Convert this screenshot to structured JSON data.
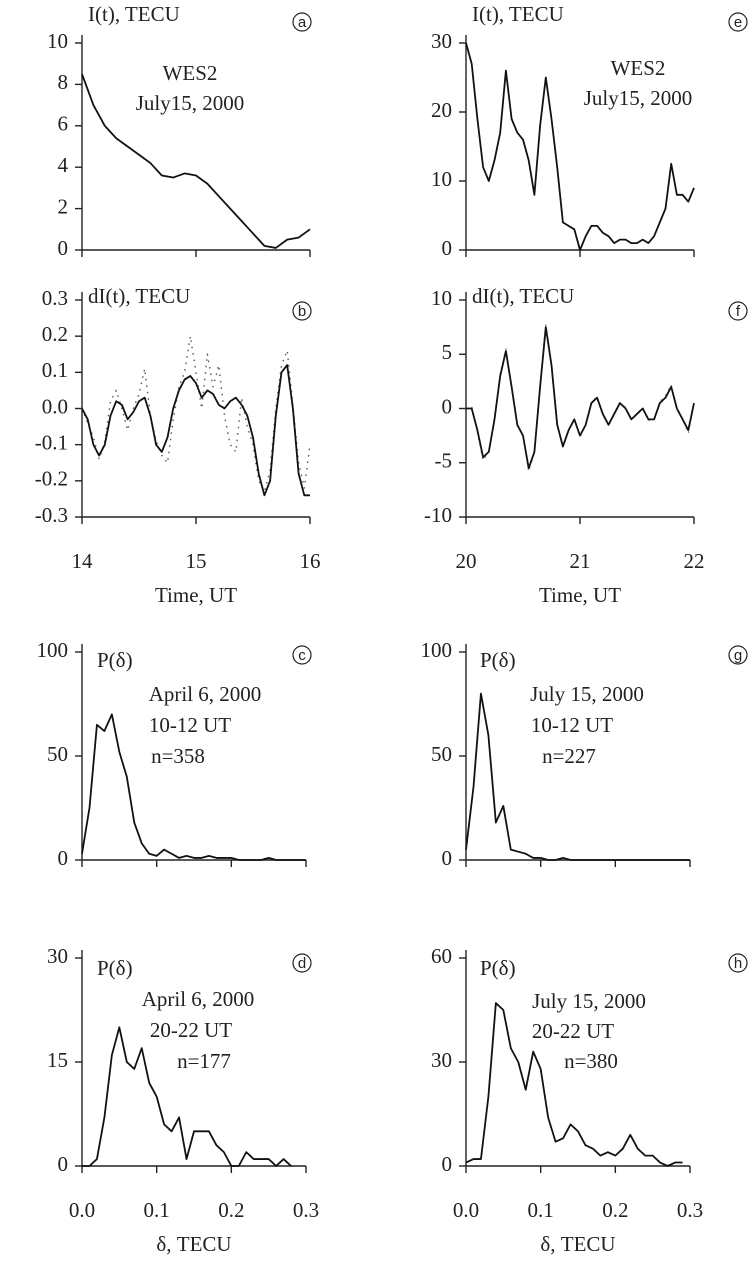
{
  "chart_data": [
    {
      "type": "line",
      "panel": "a",
      "y_label": "I(t), TECU",
      "annotations": [
        "WES2",
        "July15, 2000"
      ],
      "xlim": [
        14,
        16
      ],
      "xticks": [
        14,
        15,
        16
      ],
      "xtick_labels": false,
      "ylim": [
        0,
        10
      ],
      "yticks": [
        0,
        2,
        4,
        6,
        8,
        10
      ],
      "x": [
        14.0,
        14.1,
        14.2,
        14.3,
        14.4,
        14.5,
        14.6,
        14.7,
        14.8,
        14.9,
        15.0,
        15.1,
        15.2,
        15.3,
        15.4,
        15.5,
        15.6,
        15.7,
        15.8,
        15.9,
        16.0
      ],
      "series": [
        {
          "color": "#111111",
          "line_style": "solid",
          "values": [
            8.5,
            7.0,
            6.0,
            5.4,
            5.0,
            4.6,
            4.2,
            3.6,
            3.5,
            3.7,
            3.6,
            3.2,
            2.6,
            2.0,
            1.4,
            0.8,
            0.2,
            0.1,
            0.5,
            0.6,
            1.0
          ]
        }
      ]
    },
    {
      "type": "line",
      "panel": "b",
      "y_label": "dI(t), TECU",
      "x_label": "Time, UT",
      "xlim": [
        14,
        16
      ],
      "xticks": [
        14,
        15,
        16
      ],
      "xtick_labels": true,
      "ylim": [
        -0.3,
        0.3
      ],
      "yticks": [
        -0.3,
        -0.2,
        -0.1,
        {
          "value": 0,
          "label": "0.0"
        },
        0.1,
        0.2,
        0.3
      ],
      "x": [
        14.0,
        14.05,
        14.1,
        14.15,
        14.2,
        14.25,
        14.3,
        14.35,
        14.4,
        14.45,
        14.5,
        14.55,
        14.6,
        14.65,
        14.7,
        14.75,
        14.8,
        14.85,
        14.9,
        14.95,
        15.0,
        15.05,
        15.1,
        15.15,
        15.2,
        15.25,
        15.3,
        15.35,
        15.4,
        15.45,
        15.5,
        15.55,
        15.6,
        15.65,
        15.7,
        15.75,
        15.8,
        15.85,
        15.9,
        15.95,
        16.0
      ],
      "series": [
        {
          "color": "#555555",
          "line_style": "dotted",
          "values": [
            0.0,
            -0.04,
            -0.08,
            -0.14,
            -0.09,
            0.02,
            0.05,
            0.0,
            -0.06,
            0.0,
            0.04,
            0.11,
            -0.02,
            -0.09,
            -0.13,
            -0.15,
            -0.03,
            0.06,
            0.1,
            0.2,
            0.1,
            0.0,
            0.15,
            0.06,
            0.12,
            -0.02,
            -0.1,
            -0.12,
            0.03,
            -0.05,
            -0.1,
            -0.2,
            -0.23,
            -0.17,
            0.0,
            0.12,
            0.16,
            0.01,
            -0.15,
            -0.22,
            -0.1
          ]
        },
        {
          "color": "#111111",
          "line_style": "solid",
          "values": [
            0.0,
            -0.03,
            -0.1,
            -0.13,
            -0.1,
            -0.02,
            0.02,
            0.01,
            -0.03,
            -0.01,
            0.02,
            0.03,
            -0.02,
            -0.1,
            -0.12,
            -0.08,
            0.0,
            0.05,
            0.08,
            0.09,
            0.07,
            0.03,
            0.05,
            0.04,
            0.01,
            0.0,
            0.02,
            0.03,
            0.01,
            -0.02,
            -0.08,
            -0.18,
            -0.24,
            -0.2,
            -0.02,
            0.1,
            0.12,
            0.0,
            -0.18,
            -0.24,
            -0.24
          ]
        }
      ]
    },
    {
      "type": "line",
      "panel": "c",
      "y_label": "P(δ)",
      "annotations": [
        "April 6, 2000",
        "10-12 UT",
        "n=358"
      ],
      "xlim": [
        0,
        0.3
      ],
      "xticks": [
        {
          "value": 0,
          "label": "0.0"
        },
        0.1,
        0.2,
        0.3
      ],
      "xtick_labels": false,
      "ylim": [
        0,
        100
      ],
      "yticks": [
        0,
        50,
        100
      ],
      "x": [
        0,
        0.01,
        0.02,
        0.03,
        0.04,
        0.05,
        0.06,
        0.07,
        0.08,
        0.09,
        0.1,
        0.11,
        0.12,
        0.13,
        0.14,
        0.15,
        0.16,
        0.17,
        0.18,
        0.19,
        0.2,
        0.21,
        0.22,
        0.23,
        0.24,
        0.25,
        0.26,
        0.27,
        0.28,
        0.29,
        0.3
      ],
      "series": [
        {
          "color": "#111111",
          "line_style": "solid",
          "values": [
            3,
            25,
            65,
            62,
            70,
            52,
            40,
            18,
            8,
            3,
            2,
            5,
            3,
            1,
            2,
            1,
            1,
            2,
            1,
            1,
            1,
            0,
            0,
            0,
            0,
            1,
            0,
            0,
            0,
            0,
            0
          ]
        }
      ]
    },
    {
      "type": "line",
      "panel": "d",
      "y_label": "P(δ)",
      "x_label": "δ, TECU",
      "annotations": [
        "April 6, 2000",
        "20-22 UT",
        "n=177"
      ],
      "xlim": [
        0,
        0.3
      ],
      "xticks": [
        {
          "value": 0,
          "label": "0.0"
        },
        0.1,
        0.2,
        0.3
      ],
      "xtick_labels": true,
      "ylim": [
        0,
        30
      ],
      "yticks": [
        0,
        15,
        30
      ],
      "x": [
        0,
        0.01,
        0.02,
        0.03,
        0.04,
        0.05,
        0.06,
        0.07,
        0.08,
        0.09,
        0.1,
        0.11,
        0.12,
        0.13,
        0.14,
        0.15,
        0.16,
        0.17,
        0.18,
        0.19,
        0.2,
        0.21,
        0.22,
        0.23,
        0.24,
        0.25,
        0.26,
        0.27,
        0.28
      ],
      "series": [
        {
          "color": "#111111",
          "line_style": "solid",
          "values": [
            0,
            0,
            1,
            7,
            16,
            20,
            15,
            14,
            17,
            12,
            10,
            6,
            5,
            7,
            1,
            5,
            5,
            5,
            3,
            2,
            0,
            0,
            2,
            1,
            1,
            1,
            0,
            1,
            0
          ]
        }
      ]
    },
    {
      "type": "line",
      "panel": "e",
      "y_label": "I(t), TECU",
      "annotations": [
        "WES2",
        "July15, 2000"
      ],
      "xlim": [
        20,
        22
      ],
      "xticks": [
        20,
        21,
        22
      ],
      "xtick_labels": false,
      "ylim": [
        0,
        30
      ],
      "yticks": [
        0,
        10,
        20,
        30
      ],
      "x": [
        20.0,
        20.05,
        20.1,
        20.15,
        20.2,
        20.25,
        20.3,
        20.35,
        20.4,
        20.45,
        20.5,
        20.55,
        20.6,
        20.65,
        20.7,
        20.75,
        20.8,
        20.85,
        20.9,
        20.95,
        21.0,
        21.05,
        21.1,
        21.15,
        21.2,
        21.25,
        21.3,
        21.35,
        21.4,
        21.45,
        21.5,
        21.55,
        21.6,
        21.65,
        21.7,
        21.75,
        21.8,
        21.85,
        21.9,
        21.95,
        22.0
      ],
      "series": [
        {
          "color": "#111111",
          "line_style": "solid",
          "values": [
            30,
            27,
            19,
            12,
            10,
            13,
            17,
            26,
            19,
            17,
            16,
            13,
            8,
            18,
            25,
            19,
            12,
            4,
            3.5,
            3,
            0,
            2,
            3.5,
            3.5,
            2.5,
            2,
            1,
            1.5,
            1.5,
            1,
            1,
            1.5,
            1,
            2,
            4,
            6,
            12.5,
            8,
            8,
            7,
            9
          ]
        }
      ]
    },
    {
      "type": "line",
      "panel": "f",
      "y_label": "dI(t), TECU",
      "x_label": "Time, UT",
      "xlim": [
        20,
        22
      ],
      "xticks": [
        20,
        21,
        22
      ],
      "xtick_labels": true,
      "ylim": [
        -10,
        10
      ],
      "yticks": [
        -10,
        -5,
        0,
        5,
        10
      ],
      "x": [
        20.0,
        20.05,
        20.1,
        20.15,
        20.2,
        20.25,
        20.3,
        20.35,
        20.4,
        20.45,
        20.5,
        20.55,
        20.6,
        20.65,
        20.7,
        20.75,
        20.8,
        20.85,
        20.9,
        20.95,
        21.0,
        21.05,
        21.1,
        21.15,
        21.2,
        21.25,
        21.3,
        21.35,
        21.4,
        21.45,
        21.5,
        21.55,
        21.6,
        21.65,
        21.7,
        21.75,
        21.8,
        21.85,
        21.9,
        21.95,
        22.0
      ],
      "series": [
        {
          "color": "#888888",
          "line_style": "dotted",
          "values": [
            0,
            0.2,
            -2.2,
            -4.8,
            -4,
            -0.8,
            3.2,
            5.5,
            2,
            -1.6,
            -2.4,
            -5.8,
            -4,
            2.2,
            7.7,
            4,
            -1.4,
            -3.6,
            -2,
            -1,
            -2.6,
            -1.4,
            0.6,
            1.1,
            -0.6,
            -1.5,
            -0.4,
            0.5,
            0.1,
            -1,
            -0.5,
            0.1,
            -1.1,
            -1,
            0.6,
            1.2,
            2.2,
            0,
            -1,
            -2.3,
            0.5
          ]
        },
        {
          "color": "#111111",
          "line_style": "solid",
          "values": [
            0,
            0,
            -2,
            -4.5,
            -4,
            -1,
            3,
            5.3,
            2,
            -1.5,
            -2.5,
            -5.5,
            -4,
            2,
            7.5,
            4,
            -1.5,
            -3.5,
            -2,
            -1,
            -2.5,
            -1.5,
            0.5,
            1,
            -0.5,
            -1.5,
            -0.5,
            0.5,
            0,
            -1,
            -0.5,
            0,
            -1,
            -1,
            0.5,
            1,
            2,
            0,
            -1,
            -2,
            0.5
          ]
        }
      ]
    },
    {
      "type": "line",
      "panel": "g",
      "y_label": "P(δ)",
      "annotations": [
        "July 15, 2000",
        "10-12 UT",
        "n=227"
      ],
      "xlim": [
        0,
        0.3
      ],
      "xticks": [
        {
          "value": 0,
          "label": "0.0"
        },
        0.1,
        0.2,
        0.3
      ],
      "xtick_labels": false,
      "ylim": [
        0,
        100
      ],
      "yticks": [
        0,
        50,
        100
      ],
      "x": [
        0,
        0.01,
        0.02,
        0.03,
        0.04,
        0.05,
        0.06,
        0.07,
        0.08,
        0.09,
        0.1,
        0.11,
        0.12,
        0.13,
        0.14,
        0.15,
        0.16,
        0.17,
        0.18,
        0.19,
        0.2,
        0.21,
        0.22,
        0.23,
        0.24,
        0.25,
        0.26,
        0.27,
        0.28,
        0.29,
        0.3
      ],
      "series": [
        {
          "color": "#111111",
          "line_style": "solid",
          "values": [
            5,
            35,
            80,
            60,
            18,
            26,
            5,
            4,
            3,
            1,
            1,
            0,
            0,
            1,
            0,
            0,
            0,
            0,
            0,
            0,
            0,
            0,
            0,
            0,
            0,
            0,
            0,
            0,
            0,
            0,
            0
          ]
        }
      ]
    },
    {
      "type": "line",
      "panel": "h",
      "y_label": "P(δ)",
      "x_label": "δ, TECU",
      "annotations": [
        "July 15, 2000",
        "20-22 UT",
        "n=380"
      ],
      "xlim": [
        0,
        0.3
      ],
      "xticks": [
        {
          "value": 0,
          "label": "0.0"
        },
        0.1,
        0.2,
        0.3
      ],
      "xtick_labels": true,
      "ylim": [
        0,
        60
      ],
      "yticks": [
        0,
        30,
        60
      ],
      "x": [
        0,
        0.01,
        0.02,
        0.03,
        0.04,
        0.05,
        0.06,
        0.07,
        0.08,
        0.09,
        0.1,
        0.11,
        0.12,
        0.13,
        0.14,
        0.15,
        0.16,
        0.17,
        0.18,
        0.19,
        0.2,
        0.21,
        0.22,
        0.23,
        0.24,
        0.25,
        0.26,
        0.27,
        0.28,
        0.29
      ],
      "series": [
        {
          "color": "#111111",
          "line_style": "solid",
          "values": [
            1,
            2,
            2,
            20,
            47,
            45,
            34,
            30,
            22,
            33,
            28,
            14,
            7,
            8,
            12,
            10,
            6,
            5,
            3,
            4,
            3,
            5,
            9,
            5,
            3,
            3,
            1,
            0,
            1,
            1
          ]
        }
      ]
    }
  ]
}
